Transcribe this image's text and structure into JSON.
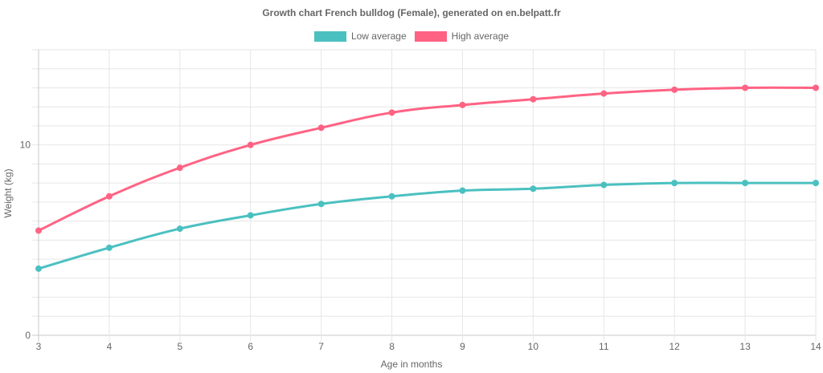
{
  "chart_data": {
    "type": "line",
    "title": "Growth chart French bulldog (Female), generated on en.belpatt.fr",
    "xlabel": "Age in months",
    "ylabel": "Weight (kg)",
    "categories": [
      "3",
      "4",
      "5",
      "6",
      "7",
      "8",
      "9",
      "10",
      "11",
      "12",
      "13",
      "14"
    ],
    "y_ticks": [
      "0",
      "10"
    ],
    "ylim": [
      0,
      15
    ],
    "grid": true,
    "legend_position": "top-center",
    "series": [
      {
        "name": "Low average",
        "color": "#4bc0c0",
        "values": [
          3.5,
          4.6,
          5.6,
          6.3,
          6.9,
          7.3,
          7.6,
          7.7,
          7.9,
          8.0,
          8.0,
          8.0
        ]
      },
      {
        "name": "High average",
        "color": "#ff6384",
        "values": [
          5.5,
          7.3,
          8.8,
          10.0,
          10.9,
          11.7,
          12.1,
          12.4,
          12.7,
          12.9,
          13.0,
          13.0
        ]
      }
    ]
  }
}
